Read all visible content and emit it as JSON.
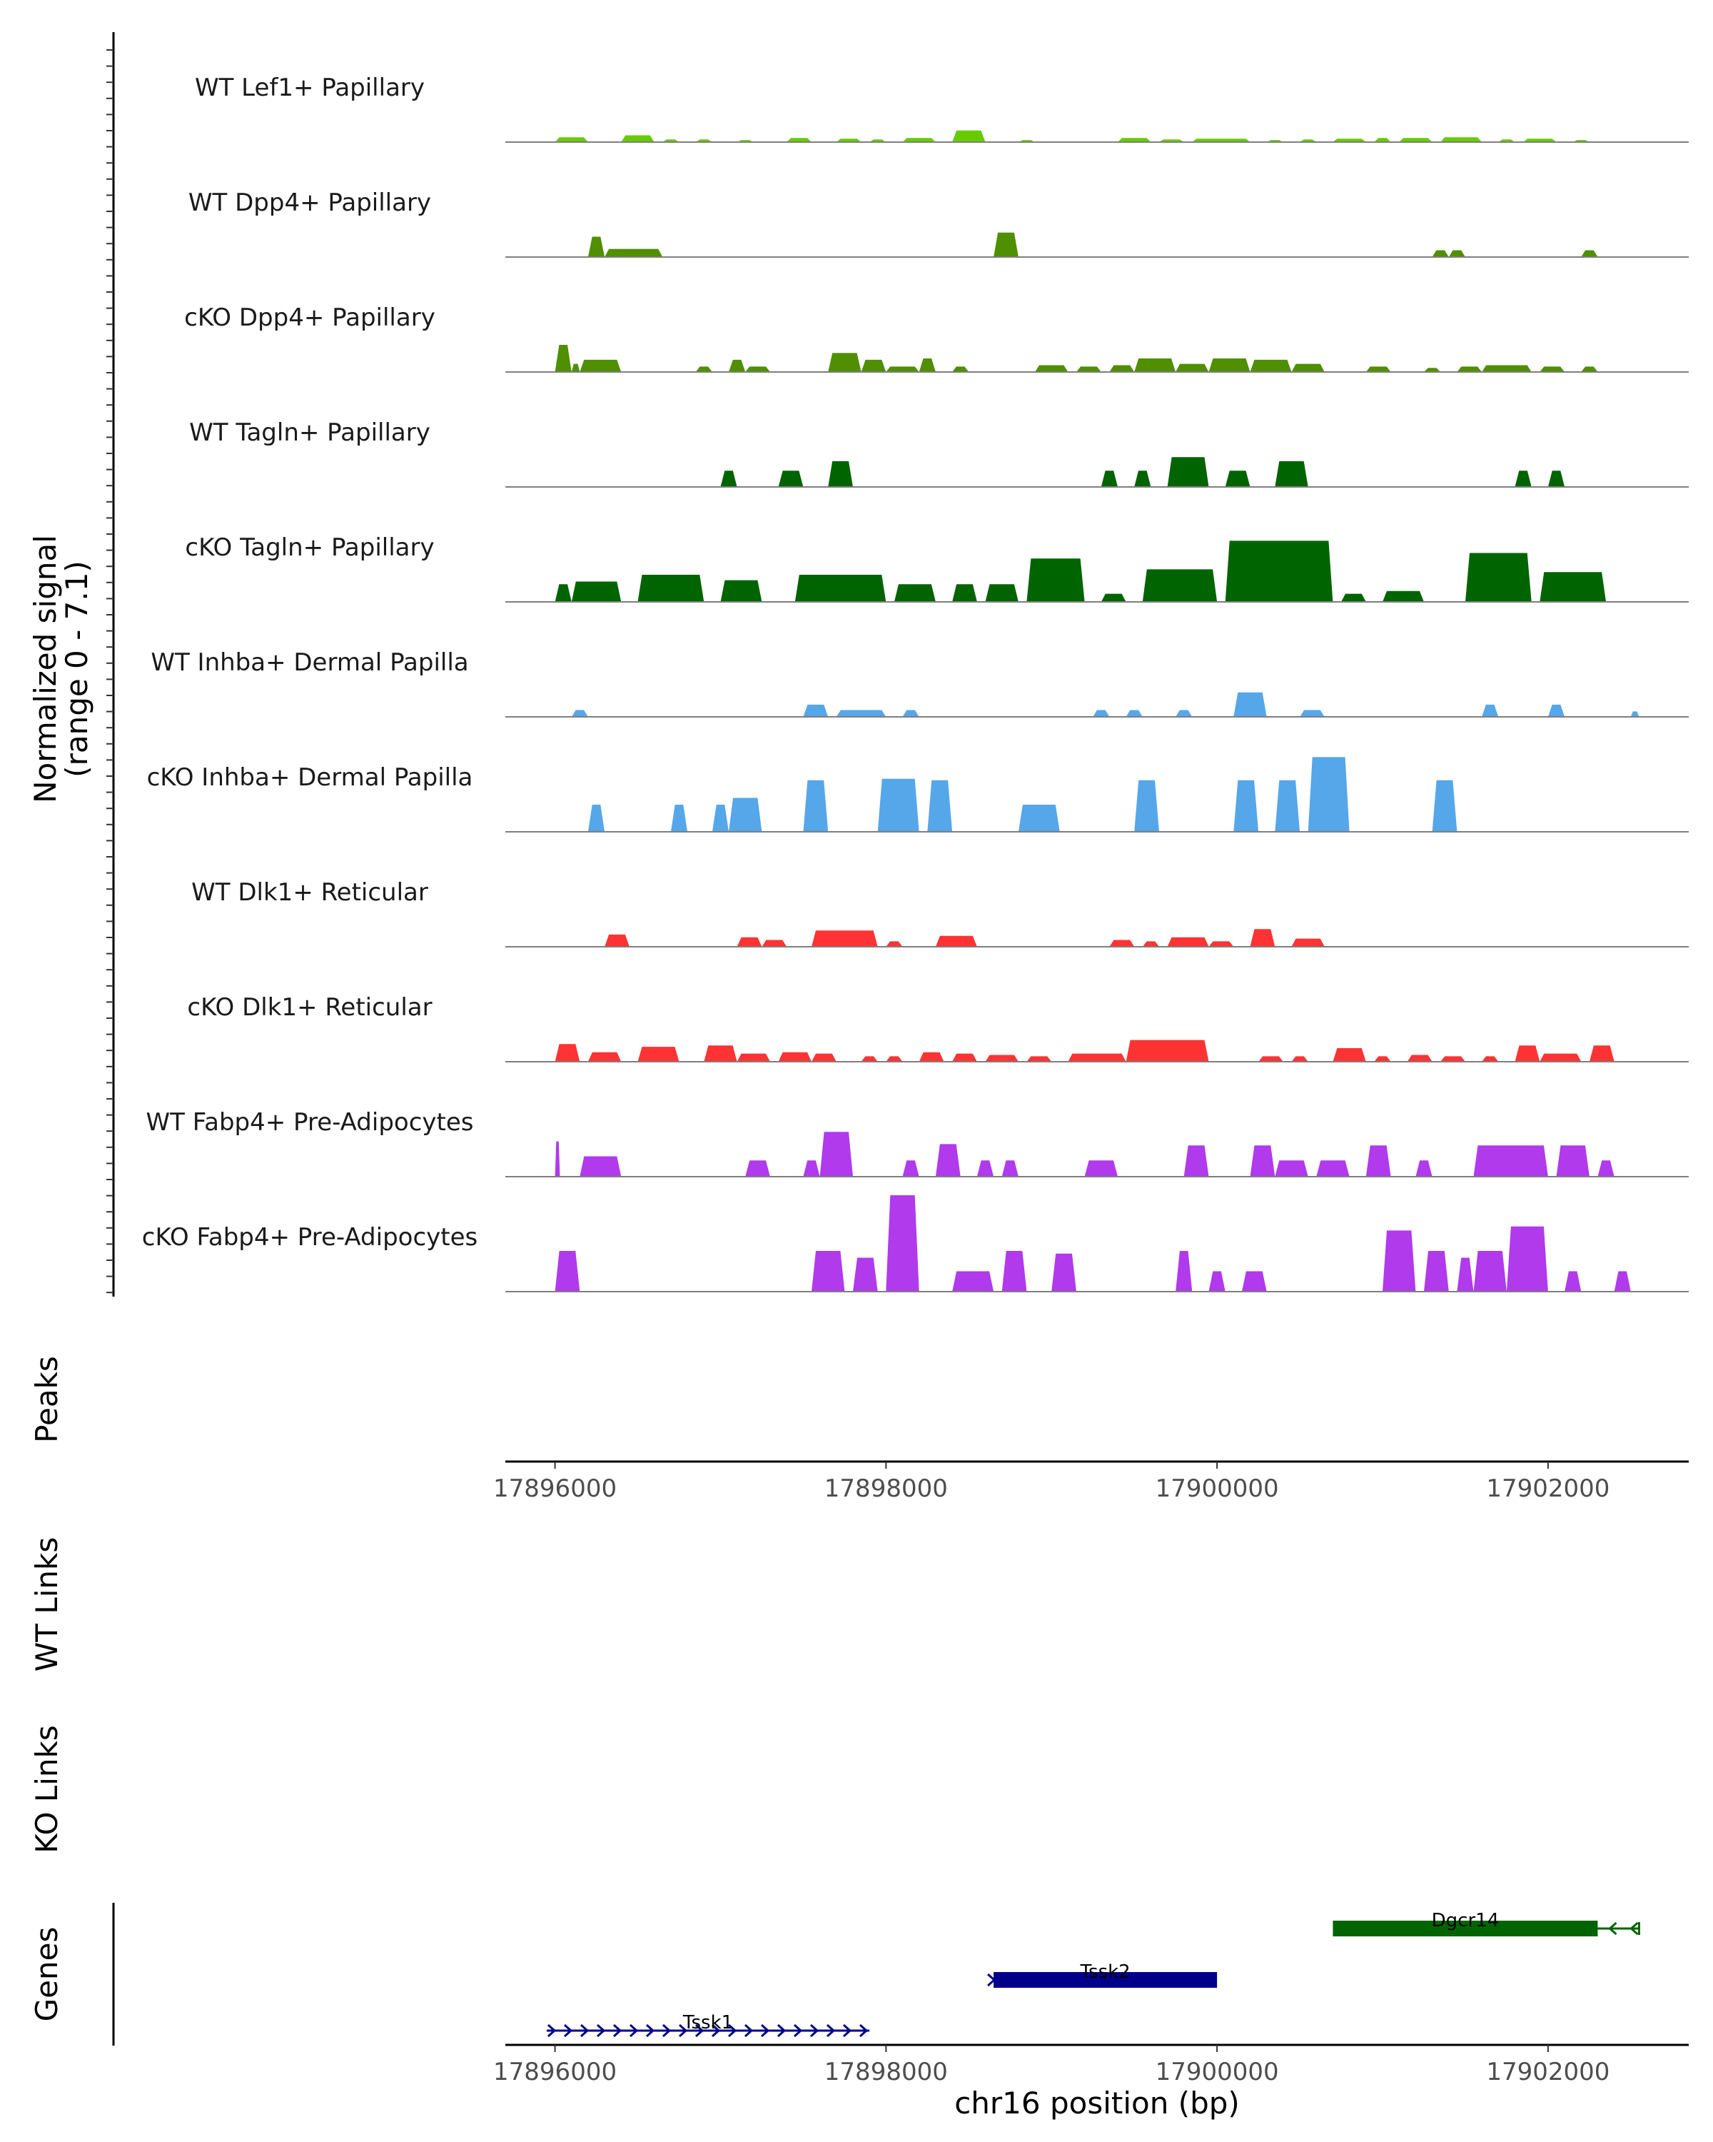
{
  "chart_data": {
    "type": "area",
    "description_free": true,
    "xlabel": "chr16 position (bp)",
    "xlim": [
      17895700,
      17902850
    ],
    "x_ticks": [
      "17896000",
      "17898000",
      "17900000",
      "17902000"
    ],
    "x_tick_values": [
      17896000,
      17898000,
      17900000,
      17902000
    ],
    "ylabel_line1": "Normalized signal",
    "ylabel_line2": "(range 0 - 7.1)",
    "ylim": [
      0,
      7.1
    ],
    "panel_labels": {
      "peaks": "Peaks",
      "wt_links": "WT Links",
      "ko_links": "KO Links",
      "genes": "Genes"
    },
    "series": [
      {
        "name": "WT Lef1+ Papillary",
        "color": "#66CC00",
        "regions": [
          [
            17896000,
            17896200,
            0.35
          ],
          [
            17896400,
            17896600,
            0.5
          ],
          [
            17896650,
            17896750,
            0.2
          ],
          [
            17896850,
            17896950,
            0.2
          ],
          [
            17897100,
            17897200,
            0.15
          ],
          [
            17897400,
            17897550,
            0.3
          ],
          [
            17897700,
            17897850,
            0.25
          ],
          [
            17897900,
            17898000,
            0.2
          ],
          [
            17898100,
            17898300,
            0.3
          ],
          [
            17898400,
            17898600,
            0.85
          ],
          [
            17898800,
            17898900,
            0.15
          ],
          [
            17899400,
            17899600,
            0.3
          ],
          [
            17899650,
            17899800,
            0.2
          ],
          [
            17899850,
            17900200,
            0.25
          ],
          [
            17900300,
            17900400,
            0.15
          ],
          [
            17900500,
            17900600,
            0.2
          ],
          [
            17900700,
            17900900,
            0.25
          ],
          [
            17900950,
            17901050,
            0.3
          ],
          [
            17901100,
            17901300,
            0.3
          ],
          [
            17901350,
            17901600,
            0.35
          ],
          [
            17901700,
            17901800,
            0.2
          ],
          [
            17901850,
            17902050,
            0.25
          ],
          [
            17902150,
            17902250,
            0.15
          ]
        ]
      },
      {
        "name": "WT Dpp4+ Papillary",
        "color": "#4F8F00",
        "regions": [
          [
            17896200,
            17896300,
            1.5
          ],
          [
            17896300,
            17896650,
            0.6
          ],
          [
            17898650,
            17898800,
            1.8
          ],
          [
            17901300,
            17901400,
            0.5
          ],
          [
            17901400,
            17901500,
            0.5
          ],
          [
            17902200,
            17902300,
            0.5
          ]
        ]
      },
      {
        "name": "cKO Dpp4+ Papillary",
        "color": "#4F8F00",
        "regions": [
          [
            17896000,
            17896100,
            2.0
          ],
          [
            17896100,
            17896150,
            0.6
          ],
          [
            17896150,
            17896400,
            0.9
          ],
          [
            17896850,
            17896950,
            0.4
          ],
          [
            17897050,
            17897150,
            0.9
          ],
          [
            17897150,
            17897300,
            0.4
          ],
          [
            17897650,
            17897850,
            1.4
          ],
          [
            17897850,
            17898000,
            0.9
          ],
          [
            17898000,
            17898200,
            0.4
          ],
          [
            17898200,
            17898300,
            1.0
          ],
          [
            17898400,
            17898500,
            0.4
          ],
          [
            17898900,
            17899100,
            0.5
          ],
          [
            17899150,
            17899300,
            0.4
          ],
          [
            17899350,
            17899500,
            0.5
          ],
          [
            17899500,
            17899750,
            1.0
          ],
          [
            17899750,
            17899950,
            0.6
          ],
          [
            17899950,
            17900200,
            1.0
          ],
          [
            17900200,
            17900450,
            0.9
          ],
          [
            17900450,
            17900650,
            0.6
          ],
          [
            17900900,
            17901050,
            0.4
          ],
          [
            17901250,
            17901350,
            0.3
          ],
          [
            17901450,
            17901600,
            0.4
          ],
          [
            17901600,
            17901900,
            0.5
          ],
          [
            17901950,
            17902100,
            0.4
          ],
          [
            17902200,
            17902300,
            0.4
          ]
        ]
      },
      {
        "name": "WT Tagln+ Papillary",
        "color": "#006400",
        "regions": [
          [
            17897000,
            17897100,
            1.2
          ],
          [
            17897350,
            17897500,
            1.2
          ],
          [
            17897650,
            17897800,
            1.9
          ],
          [
            17899300,
            17899400,
            1.2
          ],
          [
            17899500,
            17899600,
            1.2
          ],
          [
            17899700,
            17899950,
            2.2
          ],
          [
            17900050,
            17900200,
            1.2
          ],
          [
            17900350,
            17900550,
            1.9
          ],
          [
            17901800,
            17901900,
            1.2
          ],
          [
            17902000,
            17902100,
            1.2
          ]
        ]
      },
      {
        "name": "cKO Tagln+ Papillary",
        "color": "#006400",
        "regions": [
          [
            17896000,
            17896100,
            1.3
          ],
          [
            17896100,
            17896400,
            1.5
          ],
          [
            17896500,
            17896900,
            2.0
          ],
          [
            17897000,
            17897250,
            1.6
          ],
          [
            17897450,
            17898000,
            2.0
          ],
          [
            17898050,
            17898300,
            1.3
          ],
          [
            17898400,
            17898550,
            1.3
          ],
          [
            17898600,
            17898800,
            1.3
          ],
          [
            17898850,
            17899200,
            3.2
          ],
          [
            17899300,
            17899450,
            0.6
          ],
          [
            17899550,
            17900000,
            2.4
          ],
          [
            17900050,
            17900700,
            4.5
          ],
          [
            17900750,
            17900900,
            0.6
          ],
          [
            17901000,
            17901250,
            0.8
          ],
          [
            17901500,
            17901900,
            3.6
          ],
          [
            17901950,
            17902350,
            2.2
          ]
        ]
      },
      {
        "name": "WT Inhba+ Dermal Papilla",
        "color": "#56A7E9",
        "regions": [
          [
            17896100,
            17896200,
            0.5
          ],
          [
            17897500,
            17897650,
            0.9
          ],
          [
            17897700,
            17898000,
            0.5
          ],
          [
            17898100,
            17898200,
            0.5
          ],
          [
            17899250,
            17899350,
            0.5
          ],
          [
            17899450,
            17899550,
            0.5
          ],
          [
            17899750,
            17899850,
            0.5
          ],
          [
            17900100,
            17900300,
            1.8
          ],
          [
            17900500,
            17900650,
            0.5
          ],
          [
            17901600,
            17901700,
            0.9
          ],
          [
            17902000,
            17902100,
            0.9
          ],
          [
            17902500,
            17902550,
            0.4
          ]
        ]
      },
      {
        "name": "cKO Inhba+ Dermal Papilla",
        "color": "#56A7E9",
        "regions": [
          [
            17896200,
            17896300,
            2.0
          ],
          [
            17896700,
            17896800,
            2.0
          ],
          [
            17896950,
            17897050,
            2.0
          ],
          [
            17897050,
            17897250,
            2.5
          ],
          [
            17897500,
            17897650,
            3.8
          ],
          [
            17897950,
            17898200,
            3.9
          ],
          [
            17898250,
            17898400,
            3.8
          ],
          [
            17898800,
            17899050,
            2.0
          ],
          [
            17899500,
            17899650,
            3.8
          ],
          [
            17900100,
            17900250,
            3.8
          ],
          [
            17900350,
            17900500,
            3.8
          ],
          [
            17900550,
            17900800,
            5.5
          ],
          [
            17901300,
            17901450,
            3.8
          ]
        ]
      },
      {
        "name": "WT Dlk1+ Reticular",
        "color": "#FF3333",
        "regions": [
          [
            17896300,
            17896450,
            0.9
          ],
          [
            17897100,
            17897250,
            0.7
          ],
          [
            17897250,
            17897400,
            0.5
          ],
          [
            17897550,
            17897950,
            1.2
          ],
          [
            17898000,
            17898100,
            0.4
          ],
          [
            17898300,
            17898550,
            0.8
          ],
          [
            17899350,
            17899500,
            0.5
          ],
          [
            17899550,
            17899650,
            0.4
          ],
          [
            17899700,
            17899950,
            0.7
          ],
          [
            17899950,
            17900100,
            0.4
          ],
          [
            17900200,
            17900350,
            1.3
          ],
          [
            17900450,
            17900650,
            0.6
          ]
        ]
      },
      {
        "name": "cKO Dlk1+ Reticular",
        "color": "#FF3333",
        "regions": [
          [
            17896000,
            17896150,
            1.3
          ],
          [
            17896200,
            17896400,
            0.7
          ],
          [
            17896500,
            17896750,
            1.1
          ],
          [
            17896900,
            17897100,
            1.2
          ],
          [
            17897100,
            17897300,
            0.6
          ],
          [
            17897350,
            17897550,
            0.7
          ],
          [
            17897550,
            17897700,
            0.6
          ],
          [
            17897850,
            17897950,
            0.4
          ],
          [
            17898000,
            17898100,
            0.4
          ],
          [
            17898200,
            17898350,
            0.7
          ],
          [
            17898400,
            17898550,
            0.6
          ],
          [
            17898600,
            17898800,
            0.5
          ],
          [
            17898850,
            17899000,
            0.4
          ],
          [
            17899100,
            17899450,
            0.6
          ],
          [
            17899450,
            17899950,
            1.6
          ],
          [
            17900250,
            17900400,
            0.4
          ],
          [
            17900450,
            17900550,
            0.4
          ],
          [
            17900700,
            17900900,
            1.0
          ],
          [
            17900950,
            17901050,
            0.4
          ],
          [
            17901150,
            17901300,
            0.5
          ],
          [
            17901350,
            17901500,
            0.4
          ],
          [
            17901600,
            17901700,
            0.4
          ],
          [
            17901800,
            17901950,
            1.2
          ],
          [
            17901950,
            17902200,
            0.6
          ],
          [
            17902250,
            17902400,
            1.2
          ]
        ]
      },
      {
        "name": "WT Fabp4+ Pre-Adipocytes",
        "color": "#B03AEC",
        "regions": [
          [
            17896000,
            17896030,
            2.6
          ],
          [
            17896150,
            17896400,
            1.5
          ],
          [
            17897150,
            17897300,
            1.2
          ],
          [
            17897500,
            17897600,
            1.2
          ],
          [
            17897600,
            17897800,
            3.3
          ],
          [
            17898100,
            17898200,
            1.2
          ],
          [
            17898300,
            17898450,
            2.4
          ],
          [
            17898550,
            17898650,
            1.2
          ],
          [
            17898700,
            17898800,
            1.2
          ],
          [
            17899200,
            17899400,
            1.2
          ],
          [
            17899800,
            17899950,
            2.3
          ],
          [
            17900200,
            17900350,
            2.3
          ],
          [
            17900350,
            17900550,
            1.2
          ],
          [
            17900600,
            17900800,
            1.2
          ],
          [
            17900900,
            17901050,
            2.3
          ],
          [
            17901200,
            17901300,
            1.2
          ],
          [
            17901550,
            17902000,
            2.3
          ],
          [
            17902050,
            17902250,
            2.3
          ],
          [
            17902300,
            17902400,
            1.2
          ]
        ]
      },
      {
        "name": "cKO Fabp4+ Pre-Adipocytes",
        "color": "#B03AEC",
        "regions": [
          [
            17896000,
            17896150,
            3.0
          ],
          [
            17897550,
            17897750,
            3.0
          ],
          [
            17897800,
            17897950,
            2.5
          ],
          [
            17898000,
            17898200,
            7.1
          ],
          [
            17898400,
            17898650,
            1.5
          ],
          [
            17898700,
            17898850,
            3.0
          ],
          [
            17899000,
            17899150,
            2.8
          ],
          [
            17899750,
            17899850,
            3.0
          ],
          [
            17899950,
            17900050,
            1.5
          ],
          [
            17900150,
            17900300,
            1.5
          ],
          [
            17901000,
            17901200,
            4.5
          ],
          [
            17901250,
            17901400,
            3.0
          ],
          [
            17901450,
            17901550,
            2.5
          ],
          [
            17901550,
            17901750,
            3.0
          ],
          [
            17901750,
            17902000,
            4.8
          ],
          [
            17902100,
            17902200,
            1.5
          ],
          [
            17902400,
            17902500,
            1.5
          ]
        ]
      }
    ],
    "genes": [
      {
        "name": "Dgcr14",
        "start": 17900700,
        "end": 17902300,
        "arrow_end": 17902550,
        "strand": "-",
        "color": "#006400",
        "row": 0
      },
      {
        "name": "Tssk2",
        "start": 17898650,
        "end": 17900000,
        "strand": "+",
        "color": "#00008B",
        "row": 1
      },
      {
        "name": "Tssk1",
        "start": 17895950,
        "end": 17897900,
        "strand": "+",
        "color": "#00008B",
        "row": 2
      }
    ]
  }
}
